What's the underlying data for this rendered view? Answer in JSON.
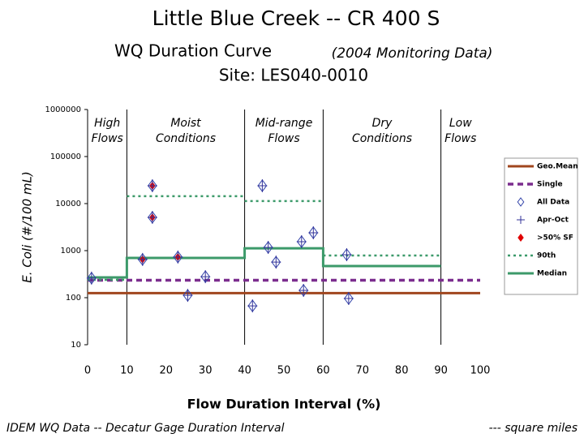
{
  "chart_data": {
    "type": "scatter",
    "title": "Little Blue Creek -- CR 400 S",
    "subtitle": "WQ Duration Curve",
    "subtitle_note": "(2004 Monitoring Data)",
    "site": "Site:  LES040-0010",
    "x_label": "Flow Duration Interval (%)",
    "y_label": "E. Coli (#/100 mL)",
    "footer_left": "IDEM WQ Data -- Decatur Gage Duration Interval",
    "footer_right": "--- square miles",
    "xlim": [
      0,
      100
    ],
    "xticks": [
      0,
      10,
      20,
      30,
      40,
      50,
      60,
      70,
      80,
      90,
      100
    ],
    "ylim": [
      10,
      1000000
    ],
    "yticks": [
      10,
      100,
      1000,
      10000,
      100000,
      1000000
    ],
    "log_y": true,
    "zone_edges": [
      10,
      40,
      60,
      90
    ],
    "zones": [
      [
        "High",
        "Flows"
      ],
      [
        "Moist",
        "Conditions"
      ],
      [
        "Mid-range",
        "Flows"
      ],
      [
        "Dry",
        "Conditions"
      ],
      [
        "Low",
        "Flows"
      ]
    ],
    "series": [
      {
        "name": "Geo.Mean",
        "kind": "line",
        "color": "#a0461e",
        "dash": "solid",
        "x": [
          0,
          100
        ],
        "values": [
          125,
          125
        ]
      },
      {
        "name": "Single",
        "kind": "line",
        "color": "#7b2d8e",
        "dash": "dashed",
        "x": [
          0,
          100
        ],
        "values": [
          235,
          235
        ]
      },
      {
        "name": "All Data",
        "kind": "diamond",
        "color": "#3344aa",
        "x": [
          1,
          14,
          16.5,
          16.5,
          23,
          25.5,
          30,
          42,
          44.5,
          46,
          48,
          54.5,
          55,
          57.5,
          66,
          66.5
        ],
        "values": [
          260,
          650,
          24000,
          5100,
          730,
          112,
          280,
          67,
          24000,
          1170,
          570,
          1550,
          143,
          2400,
          820,
          96
        ]
      },
      {
        "name": "Apr-Oct",
        "kind": "cross",
        "color": "#333399",
        "x": [
          1,
          14,
          16.5,
          16.5,
          23,
          25.5,
          30,
          42,
          44.5,
          46,
          48,
          54.5,
          55,
          57.5,
          66,
          66.5
        ],
        "values": [
          260,
          650,
          24000,
          5100,
          730,
          112,
          280,
          67,
          24000,
          1170,
          570,
          1550,
          143,
          2400,
          820,
          96
        ]
      },
      {
        "name": ">50% SF",
        "kind": "filled",
        "color": "#e00000",
        "x": [
          14,
          16.5,
          16.5,
          23
        ],
        "values": [
          650,
          24000,
          5100,
          730
        ]
      },
      {
        "name": "90th",
        "kind": "line",
        "color": "#3c9a6a",
        "dash": "dotted",
        "x": [
          0,
          10,
          10,
          10,
          40,
          40,
          40,
          60,
          60,
          60,
          90
        ],
        "values": [
          240,
          240,
          null,
          14400,
          14400,
          null,
          11300,
          11300,
          null,
          790,
          790
        ]
      },
      {
        "name": "Median",
        "kind": "line",
        "color": "#3c9a6a",
        "dash": "solid",
        "x": [
          0,
          10,
          10,
          40,
          40,
          60,
          60,
          90
        ],
        "values": [
          270,
          270,
          700,
          700,
          1120,
          1120,
          470,
          470
        ]
      }
    ]
  }
}
